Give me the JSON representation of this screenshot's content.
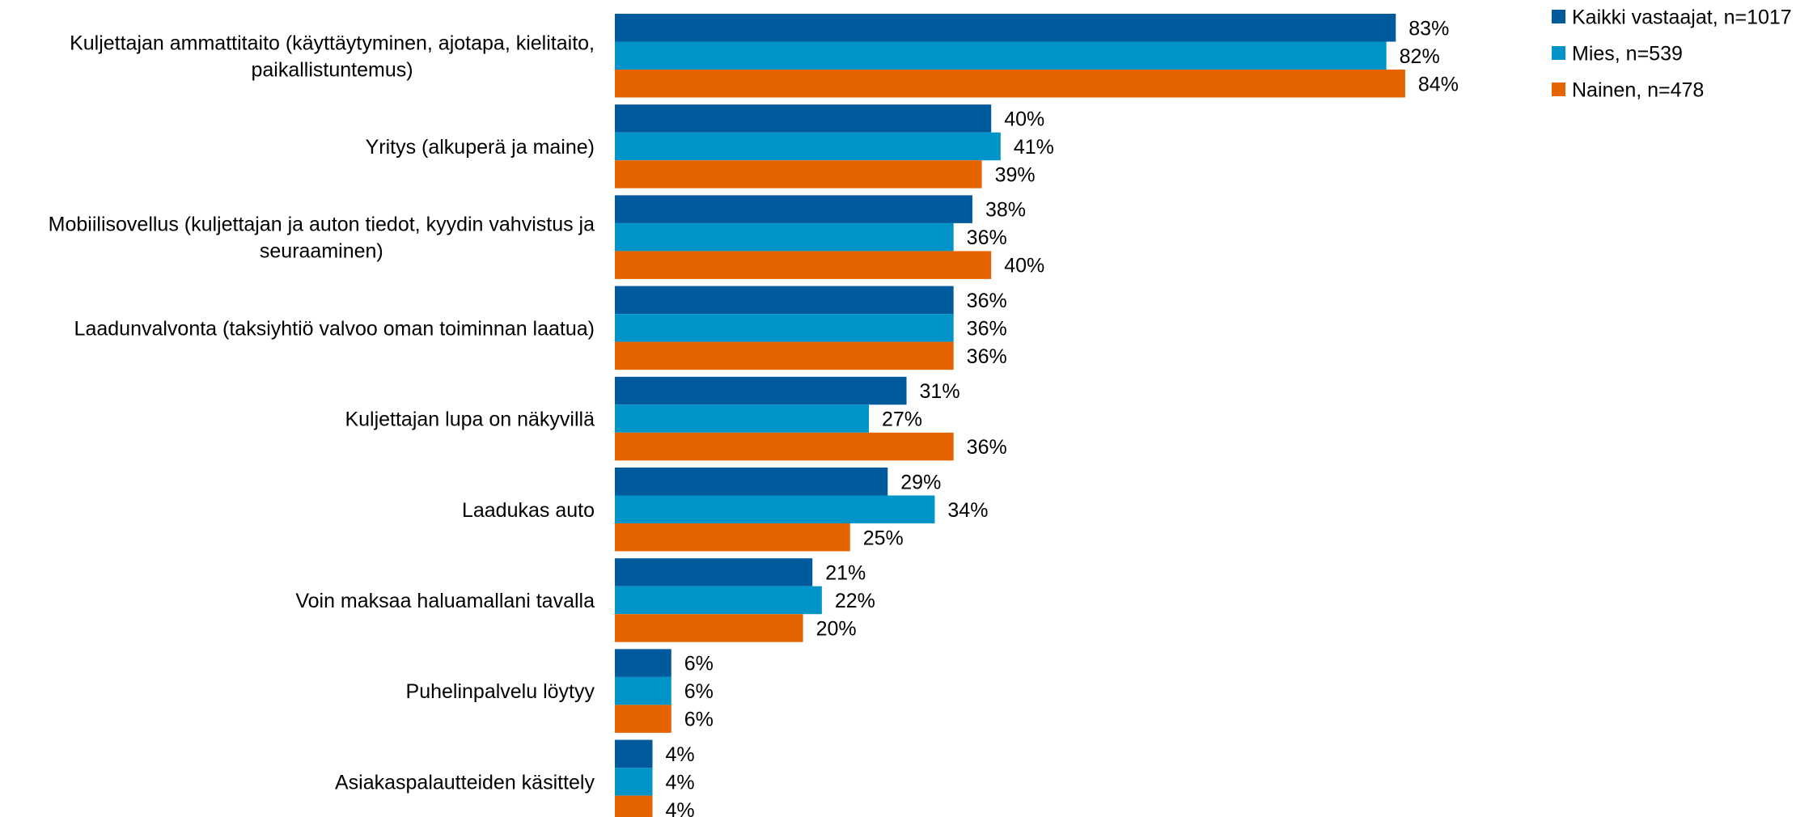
{
  "chart_data": {
    "type": "bar",
    "orientation": "horizontal",
    "categories": [
      [
        "Kuljettajan ammattitaito (käyttäytyminen, ajotapa, kielitaito,",
        "paikallistuntemus)"
      ],
      [
        "Yritys (alkuperä ja maine)"
      ],
      [
        "Mobiilisovellus (kuljettajan ja auton tiedot, kyydin vahvistus ja",
        "seuraaminen)"
      ],
      [
        "Laadunvalvonta (taksiyhtiö valvoo oman toiminnan laatua)"
      ],
      [
        "Kuljettajan lupa on näkyvillä"
      ],
      [
        "Laadukas auto"
      ],
      [
        "Voin maksaa haluamallani tavalla"
      ],
      [
        "Puhelinpalvelu löytyy"
      ],
      [
        "Asiakaspalautteiden käsittely"
      ]
    ],
    "series": [
      {
        "name": "Kaikki vastaajat, n=1017",
        "color": "#005a9c",
        "values": [
          83,
          40,
          38,
          36,
          31,
          29,
          21,
          6,
          4
        ],
        "labels": [
          "83%",
          "40%",
          "38%",
          "36%",
          "31%",
          "29%",
          "21%",
          "6%",
          "4%"
        ]
      },
      {
        "name": "Mies, n=539",
        "color": "#0094c8",
        "values": [
          82,
          41,
          36,
          36,
          27,
          34,
          22,
          6,
          4
        ],
        "labels": [
          "82%",
          "41%",
          "36%",
          "36%",
          "27%",
          "34%",
          "22%",
          "6%",
          "4%"
        ]
      },
      {
        "name": "Nainen, n=478",
        "color": "#e66400",
        "values": [
          84,
          39,
          40,
          36,
          36,
          25,
          20,
          6,
          4
        ],
        "labels": [
          "84%",
          "39%",
          "40%",
          "36%",
          "36%",
          "25%",
          "20%",
          "6%",
          "4%"
        ]
      }
    ],
    "xlim": [
      0,
      100
    ],
    "grid": false,
    "legend_position": "top-right",
    "title": "",
    "xlabel": "",
    "ylabel": ""
  }
}
